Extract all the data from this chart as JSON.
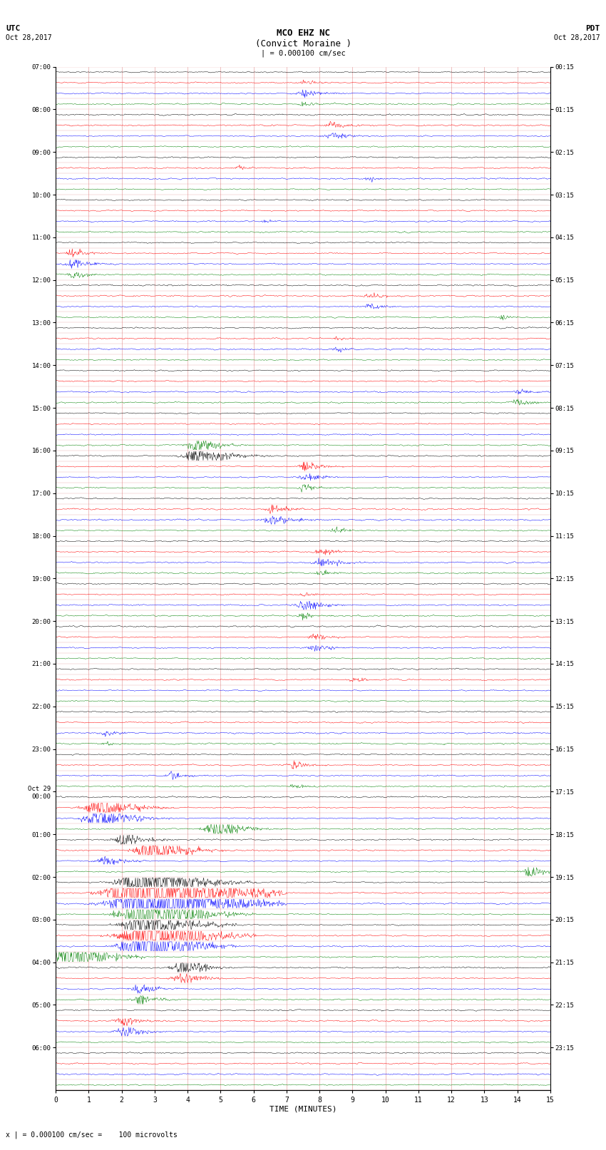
{
  "title_line1": "MCO EHZ NC",
  "title_line2": "(Convict Moraine )",
  "title_line3": "| = 0.000100 cm/sec",
  "label_utc": "UTC",
  "label_pdt": "PDT",
  "date_left": "Oct 28,2017",
  "date_right": "Oct 28,2017",
  "xlabel": "TIME (MINUTES)",
  "footnote": "x | = 0.000100 cm/sec =    100 microvolts",
  "left_labels": [
    {
      "text": "07:00",
      "trace": 0
    },
    {
      "text": "08:00",
      "trace": 4
    },
    {
      "text": "09:00",
      "trace": 8
    },
    {
      "text": "10:00",
      "trace": 12
    },
    {
      "text": "11:00",
      "trace": 16
    },
    {
      "text": "12:00",
      "trace": 20
    },
    {
      "text": "13:00",
      "trace": 24
    },
    {
      "text": "14:00",
      "trace": 28
    },
    {
      "text": "15:00",
      "trace": 32
    },
    {
      "text": "16:00",
      "trace": 36
    },
    {
      "text": "17:00",
      "trace": 40
    },
    {
      "text": "18:00",
      "trace": 44
    },
    {
      "text": "19:00",
      "trace": 48
    },
    {
      "text": "20:00",
      "trace": 52
    },
    {
      "text": "21:00",
      "trace": 56
    },
    {
      "text": "22:00",
      "trace": 60
    },
    {
      "text": "23:00",
      "trace": 64
    },
    {
      "text": "Oct 29\n00:00",
      "trace": 68
    },
    {
      "text": "01:00",
      "trace": 72
    },
    {
      "text": "02:00",
      "trace": 76
    },
    {
      "text": "03:00",
      "trace": 80
    },
    {
      "text": "04:00",
      "trace": 84
    },
    {
      "text": "05:00",
      "trace": 88
    },
    {
      "text": "06:00",
      "trace": 92
    }
  ],
  "right_labels": [
    {
      "text": "00:15",
      "trace": 0
    },
    {
      "text": "01:15",
      "trace": 4
    },
    {
      "text": "02:15",
      "trace": 8
    },
    {
      "text": "03:15",
      "trace": 12
    },
    {
      "text": "04:15",
      "trace": 16
    },
    {
      "text": "05:15",
      "trace": 20
    },
    {
      "text": "06:15",
      "trace": 24
    },
    {
      "text": "07:15",
      "trace": 28
    },
    {
      "text": "08:15",
      "trace": 32
    },
    {
      "text": "09:15",
      "trace": 36
    },
    {
      "text": "10:15",
      "trace": 40
    },
    {
      "text": "11:15",
      "trace": 44
    },
    {
      "text": "12:15",
      "trace": 48
    },
    {
      "text": "13:15",
      "trace": 52
    },
    {
      "text": "14:15",
      "trace": 56
    },
    {
      "text": "15:15",
      "trace": 60
    },
    {
      "text": "16:15",
      "trace": 64
    },
    {
      "text": "17:15",
      "trace": 68
    },
    {
      "text": "18:15",
      "trace": 72
    },
    {
      "text": "19:15",
      "trace": 76
    },
    {
      "text": "20:15",
      "trace": 80
    },
    {
      "text": "21:15",
      "trace": 84
    },
    {
      "text": "22:15",
      "trace": 88
    },
    {
      "text": "23:15",
      "trace": 92
    }
  ],
  "n_traces": 96,
  "colors_cycle": [
    "black",
    "red",
    "blue",
    "green"
  ],
  "bg_color": "#ffffff",
  "noise_amplitude": 0.06,
  "seed": 42,
  "events": [
    {
      "trace": 1,
      "time": 7.5,
      "mag": 0.25,
      "dur": 0.5
    },
    {
      "trace": 2,
      "time": 7.5,
      "mag": 0.35,
      "dur": 0.6
    },
    {
      "trace": 3,
      "time": 7.5,
      "mag": 0.2,
      "dur": 0.4
    },
    {
      "trace": 5,
      "time": 8.3,
      "mag": 0.3,
      "dur": 0.5
    },
    {
      "trace": 6,
      "time": 8.3,
      "mag": 0.4,
      "dur": 0.6
    },
    {
      "trace": 9,
      "time": 5.5,
      "mag": 0.18,
      "dur": 0.3
    },
    {
      "trace": 10,
      "time": 9.5,
      "mag": 0.2,
      "dur": 0.3
    },
    {
      "trace": 14,
      "time": 6.3,
      "mag": 0.15,
      "dur": 0.3
    },
    {
      "trace": 17,
      "time": 0.5,
      "mag": 0.6,
      "dur": 0.4
    },
    {
      "trace": 18,
      "time": 0.5,
      "mag": 0.55,
      "dur": 0.5
    },
    {
      "trace": 19,
      "time": 0.5,
      "mag": 0.4,
      "dur": 0.4
    },
    {
      "trace": 21,
      "time": 9.5,
      "mag": 0.25,
      "dur": 0.4
    },
    {
      "trace": 22,
      "time": 9.5,
      "mag": 0.35,
      "dur": 0.5
    },
    {
      "trace": 23,
      "time": 13.5,
      "mag": 0.2,
      "dur": 0.3
    },
    {
      "trace": 25,
      "time": 8.5,
      "mag": 0.15,
      "dur": 0.3
    },
    {
      "trace": 26,
      "time": 8.5,
      "mag": 0.2,
      "dur": 0.4
    },
    {
      "trace": 30,
      "time": 14.0,
      "mag": 0.25,
      "dur": 0.4
    },
    {
      "trace": 31,
      "time": 14.0,
      "mag": 0.3,
      "dur": 0.5
    },
    {
      "trace": 35,
      "time": 4.2,
      "mag": 0.8,
      "dur": 0.6
    },
    {
      "trace": 36,
      "time": 4.2,
      "mag": 1.2,
      "dur": 0.8
    },
    {
      "trace": 37,
      "time": 7.5,
      "mag": 0.6,
      "dur": 0.5
    },
    {
      "trace": 38,
      "time": 7.5,
      "mag": 0.5,
      "dur": 0.5
    },
    {
      "trace": 39,
      "time": 7.5,
      "mag": 0.35,
      "dur": 0.4
    },
    {
      "trace": 41,
      "time": 6.5,
      "mag": 0.4,
      "dur": 0.5
    },
    {
      "trace": 42,
      "time": 6.5,
      "mag": 0.55,
      "dur": 0.6
    },
    {
      "trace": 43,
      "time": 8.5,
      "mag": 0.3,
      "dur": 0.4
    },
    {
      "trace": 45,
      "time": 8.0,
      "mag": 0.35,
      "dur": 0.5
    },
    {
      "trace": 46,
      "time": 8.0,
      "mag": 0.45,
      "dur": 0.6
    },
    {
      "trace": 47,
      "time": 8.0,
      "mag": 0.25,
      "dur": 0.4
    },
    {
      "trace": 49,
      "time": 7.5,
      "mag": 0.25,
      "dur": 0.4
    },
    {
      "trace": 50,
      "time": 7.5,
      "mag": 0.55,
      "dur": 0.6
    },
    {
      "trace": 51,
      "time": 7.5,
      "mag": 0.3,
      "dur": 0.4
    },
    {
      "trace": 53,
      "time": 7.8,
      "mag": 0.3,
      "dur": 0.5
    },
    {
      "trace": 54,
      "time": 7.8,
      "mag": 0.4,
      "dur": 0.5
    },
    {
      "trace": 57,
      "time": 9.0,
      "mag": 0.25,
      "dur": 0.4
    },
    {
      "trace": 62,
      "time": 1.5,
      "mag": 0.3,
      "dur": 0.4
    },
    {
      "trace": 63,
      "time": 1.5,
      "mag": 0.2,
      "dur": 0.3
    },
    {
      "trace": 65,
      "time": 7.2,
      "mag": 0.4,
      "dur": 0.5
    },
    {
      "trace": 66,
      "time": 3.5,
      "mag": 0.35,
      "dur": 0.5
    },
    {
      "trace": 67,
      "time": 7.2,
      "mag": 0.25,
      "dur": 0.4
    },
    {
      "trace": 69,
      "time": 1.2,
      "mag": 2.0,
      "dur": 0.8
    },
    {
      "trace": 70,
      "time": 1.2,
      "mag": 1.5,
      "dur": 0.8
    },
    {
      "trace": 71,
      "time": 4.8,
      "mag": 1.2,
      "dur": 0.7
    },
    {
      "trace": 72,
      "time": 2.0,
      "mag": 0.8,
      "dur": 0.6
    },
    {
      "trace": 73,
      "time": 2.8,
      "mag": 1.8,
      "dur": 0.8
    },
    {
      "trace": 74,
      "time": 1.5,
      "mag": 0.6,
      "dur": 0.6
    },
    {
      "trace": 75,
      "time": 14.3,
      "mag": 0.6,
      "dur": 0.5
    },
    {
      "trace": 76,
      "time": 2.5,
      "mag": 3.0,
      "dur": 1.2
    },
    {
      "trace": 77,
      "time": 2.5,
      "mag": 8.0,
      "dur": 1.5
    },
    {
      "trace": 78,
      "time": 2.5,
      "mag": 6.0,
      "dur": 1.5
    },
    {
      "trace": 79,
      "time": 2.5,
      "mag": 4.0,
      "dur": 1.2
    },
    {
      "trace": 80,
      "time": 2.5,
      "mag": 3.5,
      "dur": 1.0
    },
    {
      "trace": 81,
      "time": 2.5,
      "mag": 5.0,
      "dur": 1.2
    },
    {
      "trace": 82,
      "time": 2.5,
      "mag": 4.0,
      "dur": 1.0
    },
    {
      "trace": 83,
      "time": 0.3,
      "mag": 2.5,
      "dur": 0.8
    },
    {
      "trace": 84,
      "time": 3.8,
      "mag": 1.0,
      "dur": 0.6
    },
    {
      "trace": 85,
      "time": 3.8,
      "mag": 0.8,
      "dur": 0.6
    },
    {
      "trace": 86,
      "time": 2.5,
      "mag": 0.6,
      "dur": 0.5
    },
    {
      "trace": 87,
      "time": 2.5,
      "mag": 0.5,
      "dur": 0.5
    },
    {
      "trace": 89,
      "time": 2.0,
      "mag": 0.5,
      "dur": 0.5
    },
    {
      "trace": 90,
      "time": 2.0,
      "mag": 0.7,
      "dur": 0.6
    }
  ]
}
